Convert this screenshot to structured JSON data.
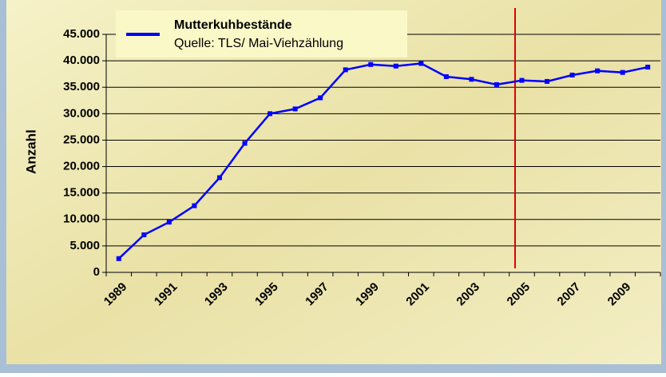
{
  "chart_data": {
    "type": "line",
    "y_label": "Anzahl",
    "source": "Quelle: TLS/ Mai-Viehzählung",
    "categories": [
      "1989",
      null,
      "1991",
      null,
      "1993",
      null,
      "1995",
      null,
      "1997",
      null,
      "1999",
      null,
      "2001",
      null,
      "2003",
      null,
      "2005",
      null,
      "2007",
      null,
      "2009",
      null
    ],
    "series": [
      {
        "name": "Mutterkuhbestände",
        "color": "#0000ff",
        "values": [
          2600,
          7100,
          9500,
          12600,
          17900,
          24400,
          30000,
          30900,
          33000,
          38300,
          39300,
          39000,
          39500,
          37000,
          36500,
          35500,
          36300,
          36100,
          37300,
          38100,
          37800,
          38800
        ]
      }
    ],
    "ylim": [
      0,
      45000
    ],
    "yticks": [
      0,
      {
        "value": 5000,
        "label": "5.000"
      },
      {
        "value": 10000,
        "label": "10.000"
      },
      {
        "value": 15000,
        "label": "15.000"
      },
      {
        "value": 20000,
        "label": "20.000"
      },
      {
        "value": 25000,
        "label": "25.000"
      },
      {
        "value": 30000,
        "label": "30.000"
      },
      {
        "value": 35000,
        "label": "35.000"
      },
      {
        "value": 40000,
        "label": "40.000"
      },
      {
        "value": 45000,
        "label": "45.000"
      }
    ],
    "grid": true
  }
}
